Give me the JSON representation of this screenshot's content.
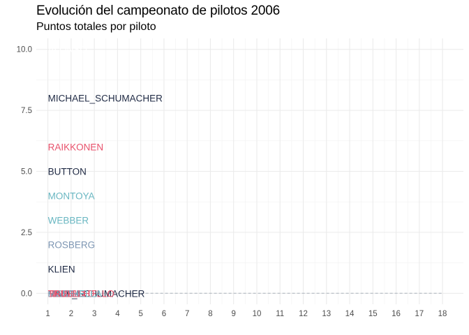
{
  "chart_data": {
    "type": "line",
    "title": "Evolución del campeonato de pilotos 2006",
    "subtitle": "Puntos totales por piloto",
    "xlabel": "",
    "ylabel": "",
    "x_ticks": [
      1,
      2,
      3,
      4,
      5,
      6,
      7,
      8,
      9,
      10,
      11,
      12,
      13,
      14,
      15,
      16,
      17,
      18
    ],
    "y_ticks": [
      0.0,
      2.5,
      5.0,
      7.5,
      10.0
    ],
    "y_tick_labels": [
      "0.0",
      "2.5",
      "5.0",
      "7.5",
      "10.0"
    ],
    "xlim": [
      0.5,
      18.9
    ],
    "ylim": [
      -0.45,
      10.45
    ],
    "grid": true,
    "legend": "none",
    "labels": [
      {
        "text": "ALONSO",
        "x": 1,
        "y": 10,
        "color": "#ffffff"
      },
      {
        "text": "MICHAEL_SCHUMACHER",
        "x": 1,
        "y": 8,
        "color": "#1f2a44"
      },
      {
        "text": "RAIKKONEN",
        "x": 1,
        "y": 6,
        "color": "#e8516b"
      },
      {
        "text": "BUTTON",
        "x": 1,
        "y": 5,
        "color": "#1f2a44"
      },
      {
        "text": "MONTOYA",
        "x": 1,
        "y": 4,
        "color": "#6ab7c2"
      },
      {
        "text": "WEBBER",
        "x": 1,
        "y": 3,
        "color": "#6ab7c2"
      },
      {
        "text": "ROSBERG",
        "x": 1,
        "y": 2,
        "color": "#7d96b3"
      },
      {
        "text": "KLIEN",
        "x": 1,
        "y": 1,
        "color": "#1f2a44"
      },
      {
        "text": "RALF_SCHUMACHER",
        "x": 1,
        "y": 0,
        "color": "#1f2a44"
      },
      {
        "text": "HEIDFELD",
        "x": 1,
        "y": 0,
        "color": "#e8516b"
      },
      {
        "text": "BARRICHELLO",
        "x": 1,
        "y": 0,
        "color": "#e8516b"
      },
      {
        "text": "FISICHELLA",
        "x": 1,
        "y": 0,
        "color": "#6ab7c2"
      },
      {
        "text": "MASSA",
        "x": 1,
        "y": 0,
        "color": "#7d96b3"
      },
      {
        "text": "TRULLI",
        "x": 1,
        "y": 0,
        "color": "#e8516b"
      }
    ],
    "series": [
      {
        "label_ref": "RALF_SCHUMACHER",
        "x": [
          1,
          18
        ],
        "y": [
          0,
          0
        ],
        "color": "#b8bec6",
        "dashed": true
      }
    ]
  }
}
